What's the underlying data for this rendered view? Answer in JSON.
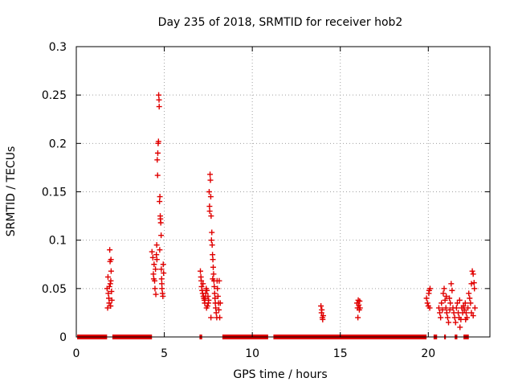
{
  "chart_data": {
    "type": "scatter",
    "title": "Day 235 of 2018, SRMTID for receiver hob2",
    "xlabel": "GPS time / hours",
    "ylabel": "SRMTID / TECUs",
    "xlim": [
      0,
      23.5
    ],
    "ylim": [
      0,
      0.3
    ],
    "xticks": [
      0,
      5,
      10,
      15,
      20
    ],
    "xtick_labels": [
      "0",
      "5",
      "10",
      "15",
      "20"
    ],
    "yticks": [
      0,
      0.05,
      0.1,
      0.15,
      0.2,
      0.25,
      0.3
    ],
    "ytick_labels": [
      "0",
      "0.05",
      "0.1",
      "0.15",
      "0.2",
      "0.25",
      "0.3"
    ],
    "grid": true,
    "marker": "+",
    "color": "#e00000",
    "zero_baseline_segments": [
      {
        "x0": 0.05,
        "x1": 1.75
      },
      {
        "x0": 2.05,
        "x1": 4.3
      },
      {
        "x0": 7.0,
        "x1": 7.15
      },
      {
        "x0": 8.3,
        "x1": 10.9
      },
      {
        "x0": 11.2,
        "x1": 19.9
      },
      {
        "x0": 20.3,
        "x1": 20.5
      },
      {
        "x0": 20.9,
        "x1": 21.0
      },
      {
        "x0": 21.5,
        "x1": 21.65
      },
      {
        "x0": 22.0,
        "x1": 22.3
      }
    ],
    "series": [
      {
        "name": "SRMTID",
        "points": [
          [
            1.75,
            0.05
          ],
          [
            1.78,
            0.03
          ],
          [
            1.8,
            0.062
          ],
          [
            1.82,
            0.045
          ],
          [
            1.85,
            0.04
          ],
          [
            1.87,
            0.035
          ],
          [
            1.9,
            0.09
          ],
          [
            1.92,
            0.078
          ],
          [
            1.93,
            0.055
          ],
          [
            1.95,
            0.032
          ],
          [
            1.97,
            0.08
          ],
          [
            1.98,
            0.068
          ],
          [
            2.0,
            0.047
          ],
          [
            2.02,
            0.038
          ],
          [
            1.88,
            0.052
          ],
          [
            1.96,
            0.058
          ],
          [
            4.3,
            0.088
          ],
          [
            4.35,
            0.082
          ],
          [
            4.38,
            0.065
          ],
          [
            4.4,
            0.06
          ],
          [
            4.42,
            0.075
          ],
          [
            4.45,
            0.058
          ],
          [
            4.47,
            0.05
          ],
          [
            4.5,
            0.07
          ],
          [
            4.52,
            0.044
          ],
          [
            4.55,
            0.085
          ],
          [
            4.57,
            0.095
          ],
          [
            4.6,
            0.183
          ],
          [
            4.62,
            0.167
          ],
          [
            4.63,
            0.19
          ],
          [
            4.65,
            0.2
          ],
          [
            4.67,
            0.202
          ],
          [
            4.68,
            0.25
          ],
          [
            4.7,
            0.245
          ],
          [
            4.71,
            0.238
          ],
          [
            4.73,
            0.14
          ],
          [
            4.75,
            0.145
          ],
          [
            4.77,
            0.125
          ],
          [
            4.78,
            0.122
          ],
          [
            4.8,
            0.118
          ],
          [
            4.82,
            0.105
          ],
          [
            4.83,
            0.07
          ],
          [
            4.85,
            0.06
          ],
          [
            4.87,
            0.05
          ],
          [
            4.9,
            0.045
          ],
          [
            4.92,
            0.042
          ],
          [
            4.94,
            0.075
          ],
          [
            4.96,
            0.066
          ],
          [
            4.58,
            0.08
          ],
          [
            4.74,
            0.09
          ],
          [
            4.86,
            0.055
          ],
          [
            7.05,
            0.068
          ],
          [
            7.08,
            0.062
          ],
          [
            7.1,
            0.058
          ],
          [
            7.12,
            0.052
          ],
          [
            7.15,
            0.048
          ],
          [
            7.18,
            0.045
          ],
          [
            7.2,
            0.055
          ],
          [
            7.22,
            0.042
          ],
          [
            7.25,
            0.04
          ],
          [
            7.28,
            0.038
          ],
          [
            7.3,
            0.035
          ],
          [
            7.32,
            0.04
          ],
          [
            7.35,
            0.045
          ],
          [
            7.38,
            0.05
          ],
          [
            7.4,
            0.03
          ],
          [
            7.42,
            0.048
          ],
          [
            7.45,
            0.032
          ],
          [
            7.48,
            0.042
          ],
          [
            7.5,
            0.035
          ],
          [
            7.52,
            0.038
          ],
          [
            7.55,
            0.15
          ],
          [
            7.57,
            0.135
          ],
          [
            7.58,
            0.13
          ],
          [
            7.6,
            0.168
          ],
          [
            7.62,
            0.162
          ],
          [
            7.64,
            0.145
          ],
          [
            7.66,
            0.125
          ],
          [
            7.68,
            0.1
          ],
          [
            7.7,
            0.108
          ],
          [
            7.72,
            0.095
          ],
          [
            7.74,
            0.085
          ],
          [
            7.76,
            0.08
          ],
          [
            7.78,
            0.072
          ],
          [
            7.8,
            0.065
          ],
          [
            7.82,
            0.058
          ],
          [
            7.84,
            0.052
          ],
          [
            7.86,
            0.045
          ],
          [
            7.88,
            0.04
          ],
          [
            7.9,
            0.035
          ],
          [
            7.92,
            0.03
          ],
          [
            7.95,
            0.025
          ],
          [
            7.98,
            0.02
          ],
          [
            8.0,
            0.058
          ],
          [
            8.02,
            0.05
          ],
          [
            8.05,
            0.042
          ],
          [
            8.08,
            0.035
          ],
          [
            8.1,
            0.028
          ],
          [
            8.12,
            0.058
          ],
          [
            8.15,
            0.02
          ],
          [
            8.18,
            0.035
          ],
          [
            7.65,
            0.02
          ],
          [
            7.75,
            0.06
          ],
          [
            13.9,
            0.032
          ],
          [
            13.93,
            0.025
          ],
          [
            13.95,
            0.028
          ],
          [
            13.98,
            0.02
          ],
          [
            14.0,
            0.018
          ],
          [
            14.03,
            0.022
          ],
          [
            15.95,
            0.035
          ],
          [
            15.98,
            0.03
          ],
          [
            16.0,
            0.02
          ],
          [
            16.02,
            0.038
          ],
          [
            16.05,
            0.033
          ],
          [
            16.08,
            0.028
          ],
          [
            16.1,
            0.037
          ],
          [
            16.12,
            0.03
          ],
          [
            19.9,
            0.04
          ],
          [
            19.95,
            0.035
          ],
          [
            20.0,
            0.032
          ],
          [
            20.03,
            0.045
          ],
          [
            20.05,
            0.048
          ],
          [
            20.08,
            0.03
          ],
          [
            20.1,
            0.05
          ],
          [
            20.6,
            0.03
          ],
          [
            20.65,
            0.025
          ],
          [
            20.7,
            0.02
          ],
          [
            20.75,
            0.035
          ],
          [
            20.8,
            0.028
          ],
          [
            20.85,
            0.045
          ],
          [
            20.9,
            0.05
          ],
          [
            20.95,
            0.038
          ],
          [
            21.0,
            0.03
          ],
          [
            21.05,
            0.025
          ],
          [
            21.1,
            0.02
          ],
          [
            21.15,
            0.015
          ],
          [
            21.2,
            0.04
          ],
          [
            21.25,
            0.035
          ],
          [
            21.3,
            0.055
          ],
          [
            21.35,
            0.048
          ],
          [
            21.4,
            0.03
          ],
          [
            21.45,
            0.025
          ],
          [
            21.5,
            0.02
          ],
          [
            21.55,
            0.015
          ],
          [
            21.6,
            0.03
          ],
          [
            21.65,
            0.035
          ],
          [
            21.7,
            0.025
          ],
          [
            21.75,
            0.02
          ],
          [
            21.8,
            0.01
          ],
          [
            21.85,
            0.018
          ],
          [
            21.9,
            0.03
          ],
          [
            21.95,
            0.025
          ],
          [
            22.0,
            0.032
          ],
          [
            22.05,
            0.028
          ],
          [
            22.1,
            0.035
          ],
          [
            22.15,
            0.025
          ],
          [
            22.2,
            0.02
          ],
          [
            22.25,
            0.03
          ],
          [
            22.3,
            0.045
          ],
          [
            22.35,
            0.04
          ],
          [
            22.4,
            0.035
          ],
          [
            22.45,
            0.025
          ],
          [
            22.5,
            0.068
          ],
          [
            22.55,
            0.065
          ],
          [
            22.6,
            0.056
          ],
          [
            22.62,
            0.05
          ],
          [
            22.65,
            0.03
          ],
          [
            22.45,
            0.055
          ],
          [
            22.55,
            0.022
          ],
          [
            21.02,
            0.042
          ],
          [
            21.22,
            0.028
          ],
          [
            21.78,
            0.038
          ],
          [
            22.12,
            0.018
          ]
        ]
      }
    ]
  }
}
